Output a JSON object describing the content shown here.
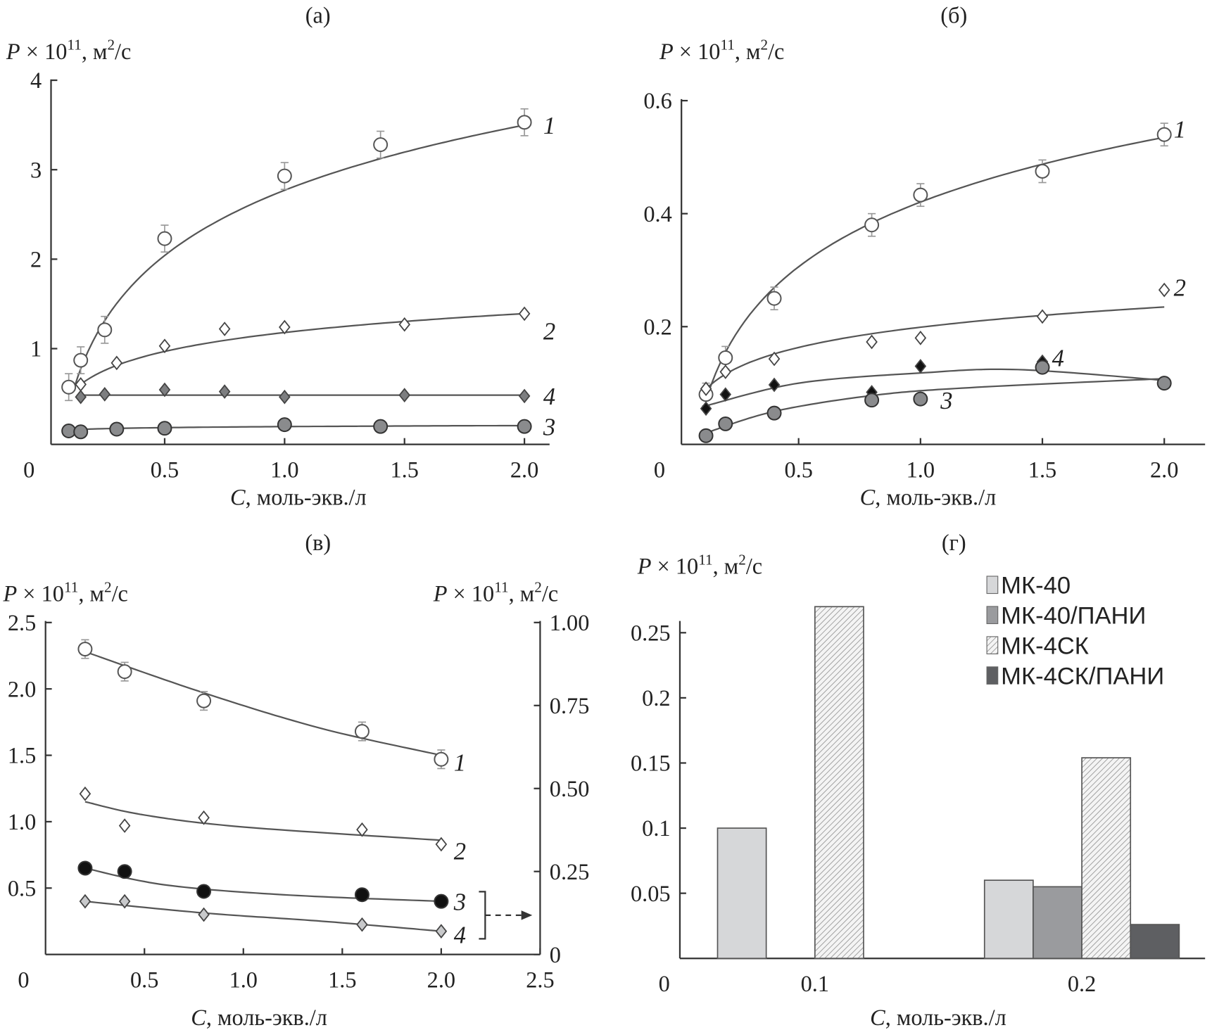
{
  "chart_data": [
    {
      "panel": "(а)",
      "type": "scatter",
      "title": "(а)",
      "ylabel": "P × 10^11, м²/с",
      "xlabel": "C, моль-экв./л",
      "xlim": [
        0,
        2.1
      ],
      "ylim": [
        0,
        4
      ],
      "xticks": [
        "0",
        "0.5",
        "1.0",
        "1.5",
        "2.0"
      ],
      "yticks": [
        "1",
        "2",
        "3",
        "4"
      ],
      "series": [
        {
          "name": "1",
          "marker": "open-circle",
          "error": 0.15,
          "x": [
            0.1,
            0.15,
            0.25,
            0.5,
            1.0,
            1.4,
            2.0
          ],
          "y": [
            0.57,
            0.87,
            1.21,
            2.23,
            2.93,
            3.28,
            3.53
          ]
        },
        {
          "name": "2",
          "marker": "open-diamond",
          "x": [
            0.15,
            0.3,
            0.5,
            0.75,
            1.0,
            1.5,
            2.0
          ],
          "y": [
            0.6,
            0.84,
            1.03,
            1.22,
            1.24,
            1.27,
            1.39
          ]
        },
        {
          "name": "4",
          "marker": "gray-diamond",
          "x": [
            0.15,
            0.25,
            0.5,
            0.75,
            1.0,
            1.5,
            2.0
          ],
          "y": [
            0.46,
            0.49,
            0.54,
            0.52,
            0.46,
            0.48,
            0.47
          ]
        },
        {
          "name": "3",
          "marker": "gray-circle",
          "x": [
            0.1,
            0.15,
            0.3,
            0.5,
            1.0,
            1.4,
            2.0
          ],
          "y": [
            0.08,
            0.07,
            0.1,
            0.11,
            0.15,
            0.13,
            0.13
          ]
        }
      ]
    },
    {
      "panel": "(б)",
      "type": "scatter",
      "title": "(б)",
      "ylabel": "P × 10^11, м²/с",
      "xlabel": "C, моль-экв./л",
      "xlim": [
        0,
        2.15
      ],
      "ylim": [
        0,
        0.6
      ],
      "xticks": [
        "0",
        "0.5",
        "1.0",
        "1.5",
        "2.0"
      ],
      "yticks": [
        "0.2",
        "0.4",
        "0.6"
      ],
      "series": [
        {
          "name": "1",
          "marker": "open-circle",
          "error": 0.02,
          "x": [
            0.12,
            0.2,
            0.4,
            0.8,
            1.0,
            1.5,
            2.0
          ],
          "y": [
            0.08,
            0.145,
            0.25,
            0.38,
            0.433,
            0.475,
            0.54
          ]
        },
        {
          "name": "2",
          "marker": "open-diamond",
          "x": [
            0.12,
            0.2,
            0.4,
            0.8,
            1.0,
            1.5,
            2.0
          ],
          "y": [
            0.09,
            0.12,
            0.143,
            0.173,
            0.18,
            0.218,
            0.265
          ]
        },
        {
          "name": "4",
          "marker": "black-diamond",
          "x": [
            0.12,
            0.2,
            0.4,
            0.8,
            1.0,
            1.5,
            2.0
          ],
          "y": [
            0.055,
            0.08,
            0.097,
            0.084,
            0.13,
            0.138,
            0.1
          ]
        },
        {
          "name": "3",
          "marker": "gray-circle",
          "x": [
            0.12,
            0.2,
            0.4,
            0.8,
            1.0,
            1.5,
            2.0
          ],
          "y": [
            0.007,
            0.028,
            0.047,
            0.07,
            0.072,
            0.128,
            0.1
          ]
        }
      ]
    },
    {
      "panel": "(в)",
      "type": "scatter",
      "title": "(в)",
      "ylabel": "P × 10^11, м²/с",
      "ylabel_right": "P × 10^11, м²/с",
      "xlabel": "C, моль-экв./л",
      "xlim": [
        0,
        2.5
      ],
      "ylim": [
        0,
        2.5
      ],
      "ylim_right": [
        0,
        1.0
      ],
      "xticks": [
        "0",
        "0.5",
        "1.0",
        "1.5",
        "2.0",
        "2.5"
      ],
      "yticks": [
        "0.5",
        "1.0",
        "1.5",
        "2.0",
        "2.5"
      ],
      "yticks_right": [
        "0",
        "0.25",
        "0.50",
        "0.75",
        "1.00"
      ],
      "series": [
        {
          "name": "1",
          "axis": "left",
          "marker": "open-circle",
          "error": 0.07,
          "x": [
            0.2,
            0.4,
            0.8,
            1.6,
            2.0
          ],
          "y": [
            2.3,
            2.13,
            1.91,
            1.68,
            1.47
          ]
        },
        {
          "name": "2",
          "axis": "left",
          "marker": "open-diamond",
          "x": [
            0.2,
            0.4,
            0.8,
            1.6,
            2.0
          ],
          "y": [
            1.21,
            0.97,
            1.03,
            0.94,
            0.83
          ]
        },
        {
          "name": "3",
          "axis": "right",
          "marker": "black-circle",
          "x": [
            0.2,
            0.4,
            0.8,
            1.6,
            2.0
          ],
          "y": [
            0.26,
            0.25,
            0.19,
            0.18,
            0.16
          ]
        },
        {
          "name": "4",
          "axis": "right",
          "marker": "light-diamond",
          "x": [
            0.2,
            0.4,
            0.8,
            1.6,
            2.0
          ],
          "y": [
            0.16,
            0.16,
            0.12,
            0.09,
            0.07
          ]
        }
      ]
    },
    {
      "panel": "(г)",
      "type": "bar",
      "title": "(г)",
      "ylabel": "P × 10^11, м²/с",
      "xlabel": "C, моль-экв./л",
      "ylim": [
        0,
        0.28
      ],
      "categories": [
        "0.1",
        "0.2"
      ],
      "x_origin_label": "0",
      "yticks": [
        "0.05",
        "0.1",
        "0.15",
        "0.2",
        "0.25"
      ],
      "legend_position": "top-right",
      "series": [
        {
          "name": "МК-40",
          "color": "#d6d7d9",
          "values": [
            0.1,
            0.06
          ]
        },
        {
          "name": "МК-40/ПАНИ",
          "color": "#9a9b9e",
          "values": [
            null,
            0.055
          ]
        },
        {
          "name": "МК-4СК",
          "color": "hatched",
          "values": [
            0.27,
            0.154
          ]
        },
        {
          "name": "МК-4СК/ПАНИ",
          "color": "#5e5f62",
          "values": [
            null,
            0.026
          ]
        }
      ]
    }
  ]
}
